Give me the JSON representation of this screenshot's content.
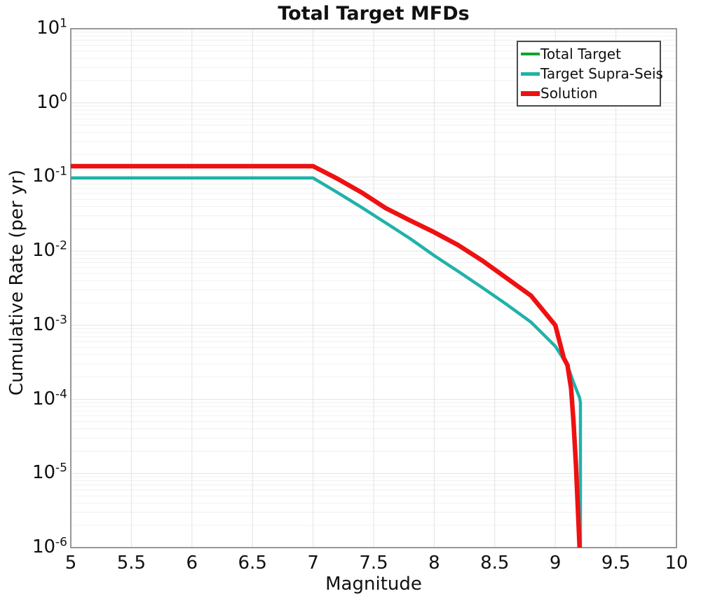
{
  "title": "Total Target MFDs",
  "axes": {
    "xlabel": "Magnitude",
    "ylabel": "Cumulative Rate (per yr)",
    "x_ticks": [
      5,
      5.5,
      6,
      6.5,
      7,
      7.5,
      8,
      8.5,
      9,
      9.5,
      10
    ],
    "y_tick_exponents": [
      1,
      0,
      -1,
      -2,
      -3,
      -4,
      -5,
      -6
    ]
  },
  "colors": {
    "total_target": "#00a52f",
    "target_supra_seis": "#20b2aa",
    "solution": "#ee1111",
    "grid_minor": "#f0f0f0",
    "grid_major": "#e3e3e3",
    "axis_border": "#8c8c8c",
    "legend_border": "#4a4a4a",
    "text": "#111111"
  },
  "chart_data": {
    "type": "line",
    "title": "Total Target MFDs",
    "xlabel": "Magnitude",
    "ylabel": "Cumulative Rate (per yr)",
    "xlim": [
      5,
      10
    ],
    "ylim": [
      1e-06,
      10
    ],
    "x_scale": "linear",
    "y_scale": "log",
    "grid": true,
    "legend_position": "top-right",
    "series": [
      {
        "name": "Total Target",
        "color": "#00a52f",
        "width": 4,
        "x": [
          5,
          5.5,
          6,
          6.5,
          7,
          7.2,
          7.4,
          7.6,
          7.8,
          8,
          8.2,
          8.4,
          8.6,
          8.8,
          9,
          9.07,
          9.1,
          9.13,
          9.15,
          9.17,
          9.2
        ],
        "y": [
          0.14,
          0.14,
          0.14,
          0.14,
          0.14,
          0.095,
          0.062,
          0.038,
          0.026,
          0.018,
          0.012,
          0.0074,
          0.0043,
          0.0025,
          0.001,
          0.00036,
          0.00029,
          0.00014,
          5e-05,
          1.3e-05,
          1e-06
        ]
      },
      {
        "name": "Target Supra-Seis",
        "color": "#20b2aa",
        "width": 4.5,
        "x": [
          5,
          5.5,
          6,
          6.5,
          7,
          7.2,
          7.4,
          7.6,
          7.8,
          8,
          8.2,
          8.4,
          8.6,
          8.8,
          9,
          9.1,
          9.15,
          9.2,
          9.207,
          9.207
        ],
        "y": [
          0.097,
          0.097,
          0.097,
          0.097,
          0.097,
          0.062,
          0.039,
          0.024,
          0.0148,
          0.0087,
          0.0053,
          0.0032,
          0.0019,
          0.0011,
          0.00052,
          0.00029,
          0.00017,
          0.000105,
          9e-05,
          1e-06
        ]
      },
      {
        "name": "Solution",
        "color": "#ee1111",
        "width": 6.5,
        "x": [
          5,
          5.5,
          6,
          6.5,
          7,
          7.2,
          7.4,
          7.6,
          7.8,
          8,
          8.2,
          8.4,
          8.6,
          8.8,
          9,
          9.07,
          9.1,
          9.13,
          9.15,
          9.17,
          9.2
        ],
        "y": [
          0.14,
          0.14,
          0.14,
          0.14,
          0.14,
          0.095,
          0.062,
          0.038,
          0.026,
          0.018,
          0.012,
          0.0074,
          0.0043,
          0.0025,
          0.001,
          0.00036,
          0.00029,
          0.00014,
          5e-05,
          1.3e-05,
          1e-06
        ]
      }
    ]
  }
}
